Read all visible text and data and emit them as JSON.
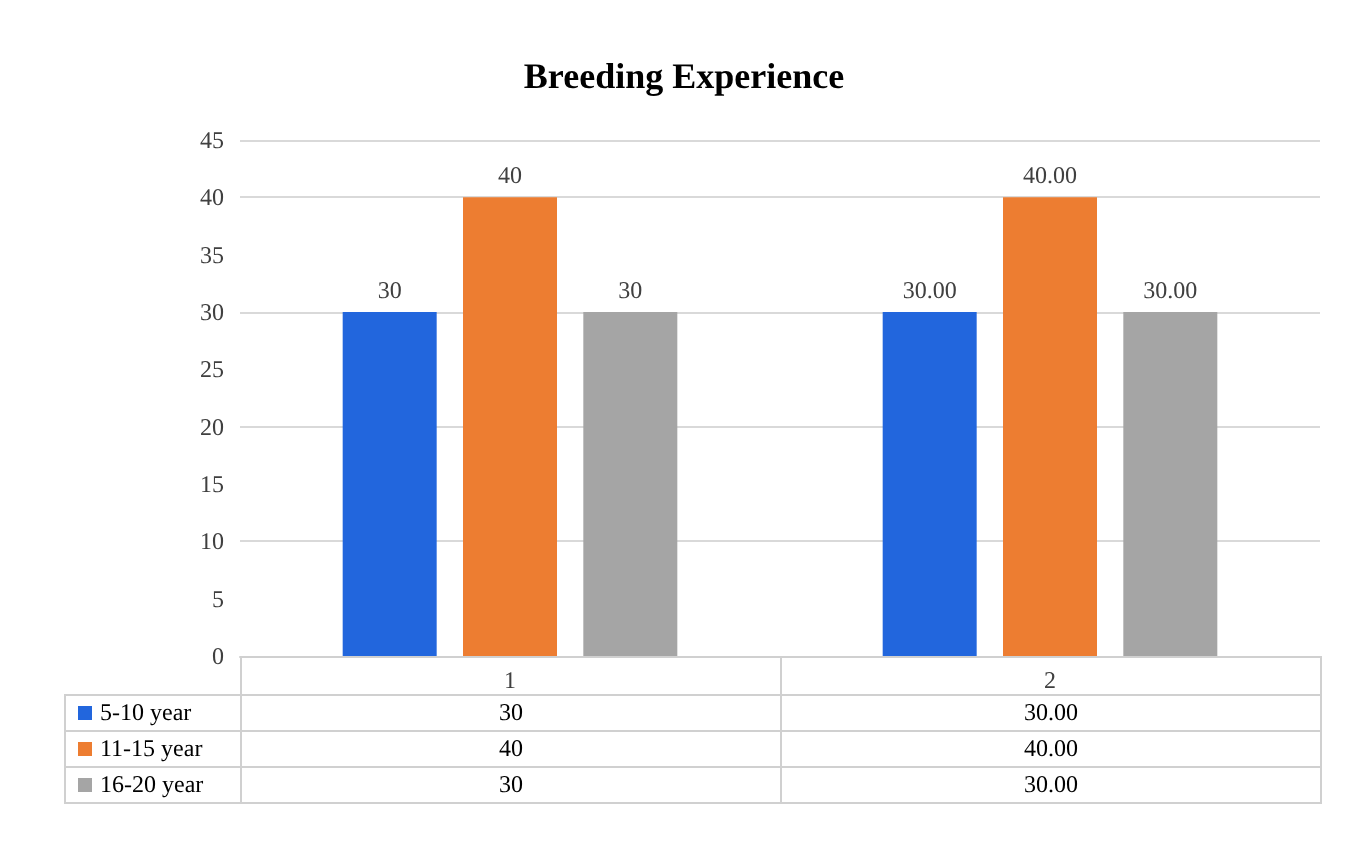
{
  "chart_data": {
    "type": "bar",
    "title": "Breeding Experience",
    "categories": [
      "1",
      "2"
    ],
    "series": [
      {
        "name": "5-10 year",
        "color": "#2266dd",
        "values": [
          30,
          30
        ],
        "value_labels": [
          "30",
          "30.00"
        ]
      },
      {
        "name": "11-15 year",
        "color": "#ed7d31",
        "values": [
          40,
          40
        ],
        "value_labels": [
          "40",
          "40.00"
        ]
      },
      {
        "name": "16-20 year",
        "color": "#a5a5a5",
        "values": [
          30,
          30
        ],
        "value_labels": [
          "30",
          "30.00"
        ]
      }
    ],
    "ylim": [
      0,
      45
    ],
    "yticks": [
      0,
      5,
      10,
      15,
      20,
      25,
      30,
      35,
      40,
      45
    ],
    "grid": "y",
    "legend": "bottom"
  }
}
